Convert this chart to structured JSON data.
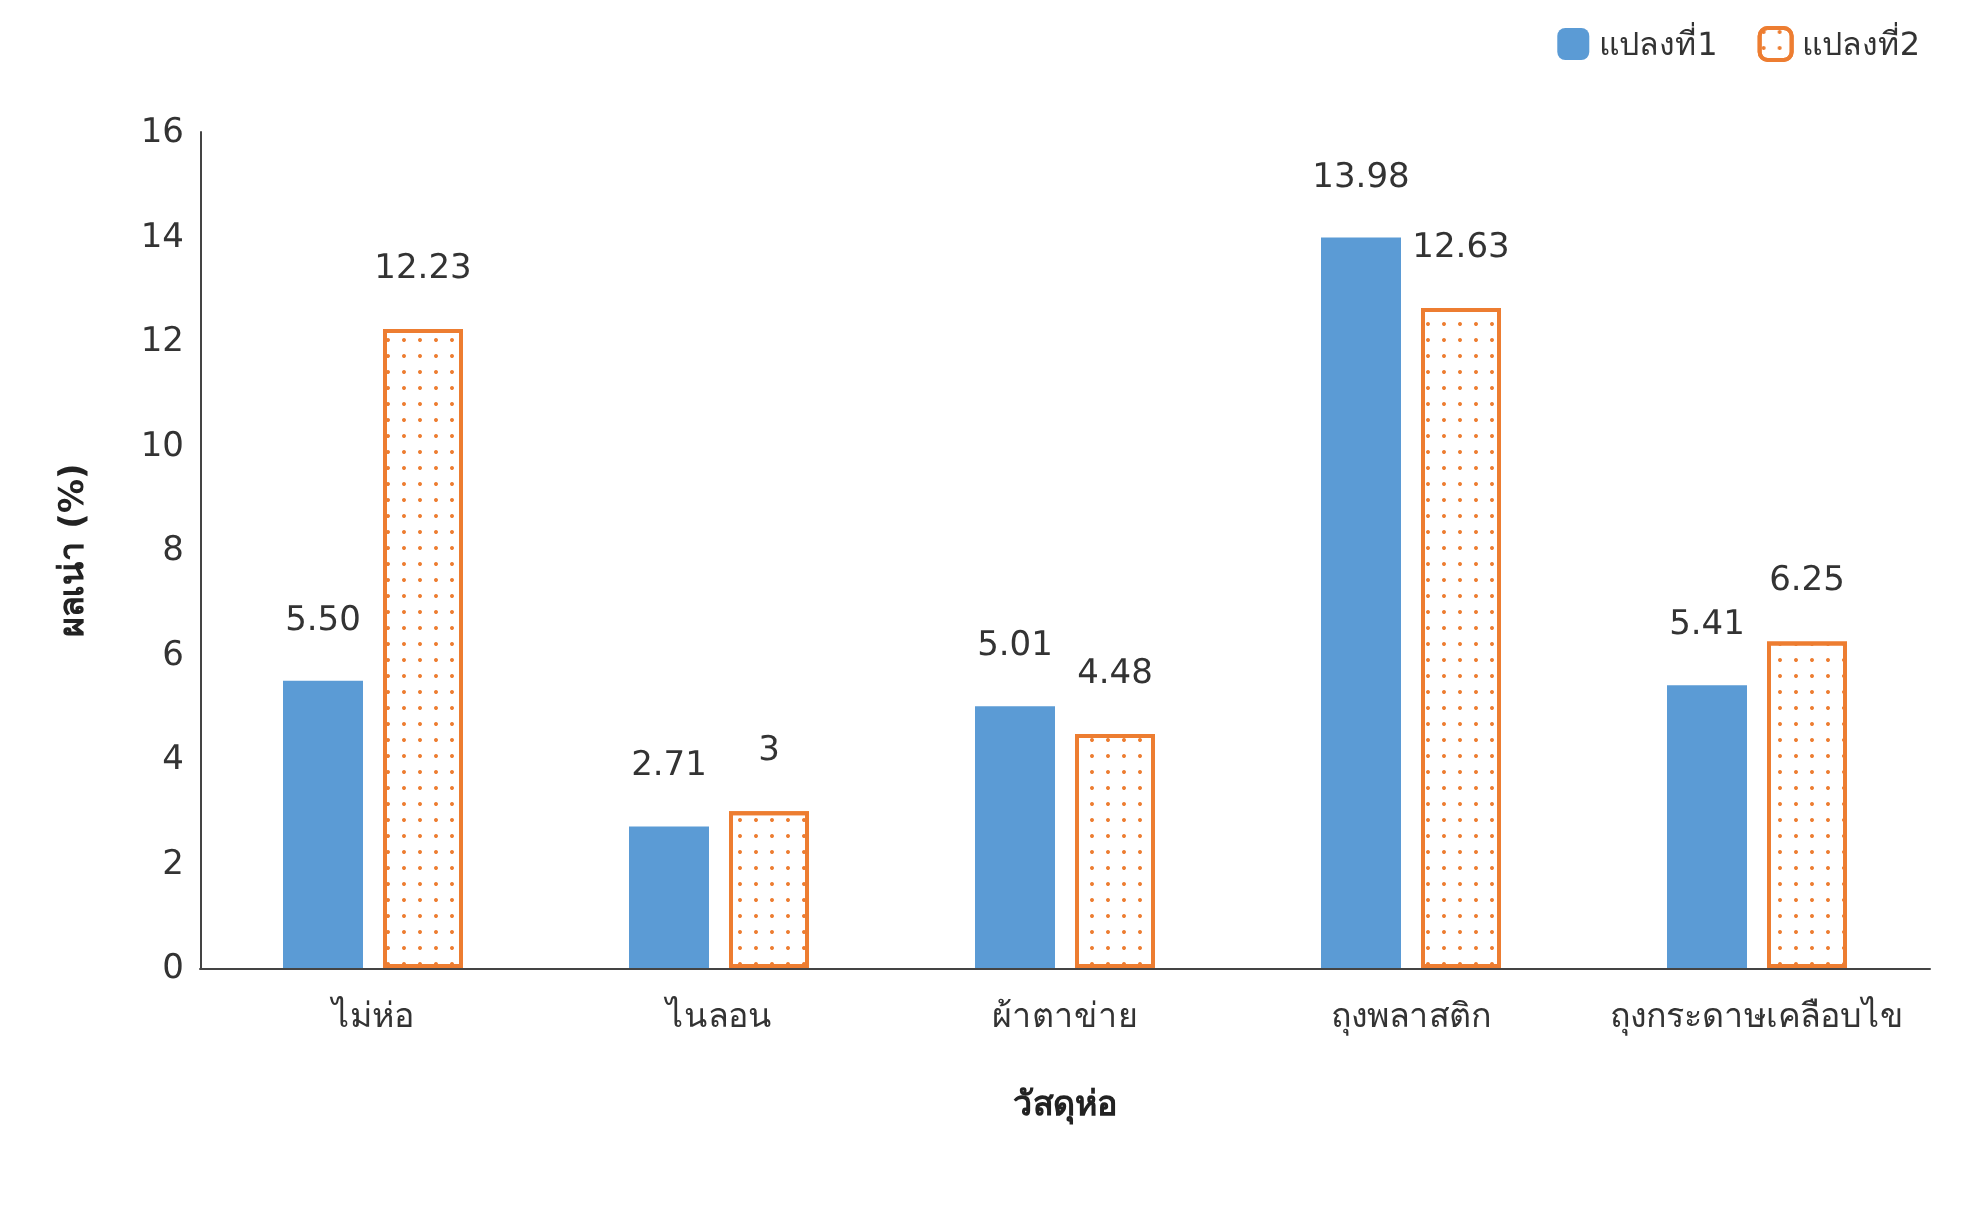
{
  "chart_data": {
    "type": "bar",
    "xlabel": "วัสดุห่อ",
    "ylabel": "ผลเน่า (%)",
    "categories": [
      "ไม่ห่อ",
      "ไนลอน",
      "ผ้าตาข่าย",
      "ถุงพลาสติก",
      "ถุงกระดาษเคลือบไข"
    ],
    "series": [
      {
        "name": "แปลงที่1",
        "color": "#5b9bd5",
        "values": [
          5.5,
          2.71,
          5.01,
          13.98,
          5.41
        ],
        "value_labels": [
          "5.50",
          "2.71",
          "5.01",
          "13.98",
          "5.41"
        ]
      },
      {
        "name": "แปลงที่2",
        "color": "#ed7d31",
        "values": [
          12.23,
          3,
          4.48,
          12.63,
          6.25
        ],
        "value_labels": [
          "12.23",
          "3",
          "4.48",
          "12.63",
          "6.25"
        ]
      }
    ],
    "ylim": [
      0,
      16
    ],
    "yticks": [
      0,
      2,
      4,
      6,
      8,
      10,
      12,
      14,
      16
    ],
    "grid": false,
    "legend": "top right"
  }
}
